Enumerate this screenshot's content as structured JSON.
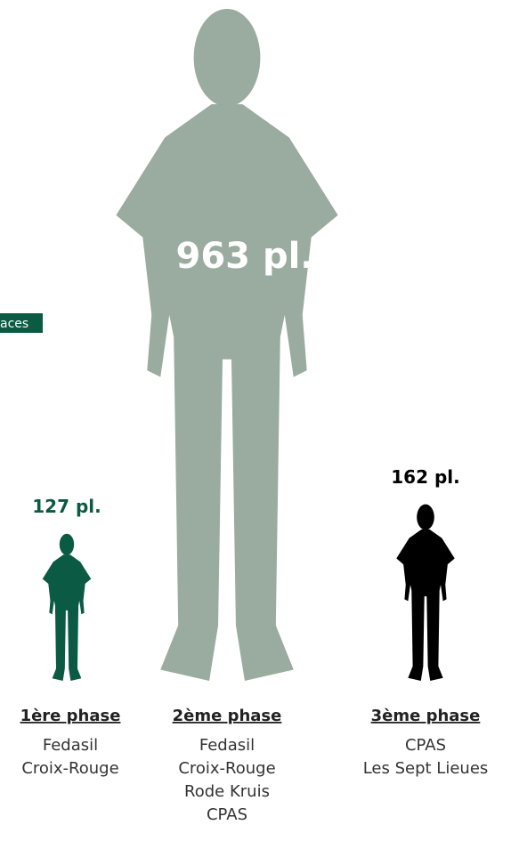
{
  "chart_data": {
    "type": "pictogram",
    "annotation": "aces",
    "categories": [
      "1ère phase",
      "2ème phase",
      "3ème phase"
    ],
    "values": [
      127,
      963,
      162
    ],
    "value_labels": [
      "127 pl.",
      "963 pl.",
      "162 pl."
    ],
    "colors": [
      "#0b5a44",
      "#9aab9f",
      "#000000"
    ],
    "details": [
      [
        "Fedasil",
        "Croix-Rouge"
      ],
      [
        "Fedasil",
        "Croix-Rouge",
        "Rode Kruis",
        "CPAS"
      ],
      [
        "CPAS",
        "Les Sept Lieues"
      ]
    ]
  }
}
